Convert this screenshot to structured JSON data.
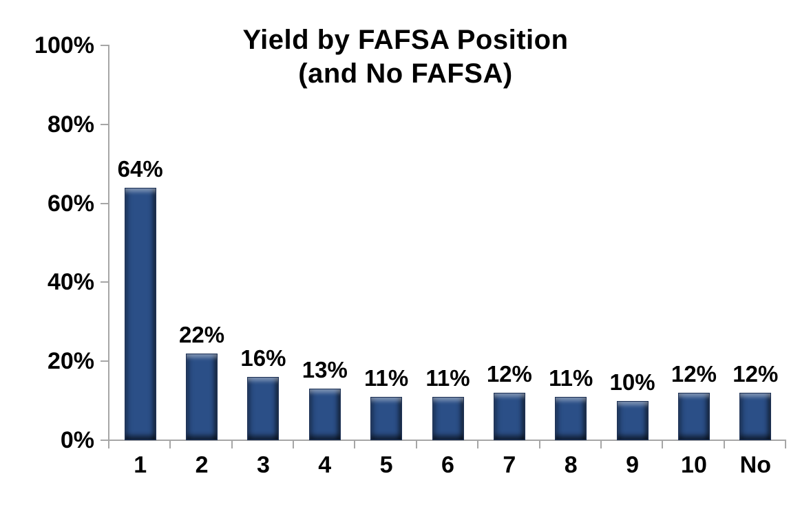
{
  "chart": {
    "title_line1": "Yield by FAFSA Position",
    "title_line2": "(and No FAFSA)"
  },
  "chart_data": {
    "type": "bar",
    "title": "Yield by FAFSA Position (and No FAFSA)",
    "categories": [
      "1",
      "2",
      "3",
      "4",
      "5",
      "6",
      "7",
      "8",
      "9",
      "10",
      "No"
    ],
    "values": [
      64,
      22,
      16,
      13,
      11,
      11,
      12,
      11,
      10,
      12,
      12
    ],
    "value_labels": [
      "64%",
      "22%",
      "16%",
      "13%",
      "11%",
      "11%",
      "12%",
      "11%",
      "10%",
      "12%",
      "12%"
    ],
    "xlabel": "",
    "ylabel": "",
    "ylim": [
      0,
      100
    ],
    "y_tick_interval": 20,
    "y_tick_labels": [
      "0%",
      "20%",
      "40%",
      "60%",
      "80%",
      "100%"
    ],
    "grid": "off",
    "legend": "none",
    "colors": {
      "bar_fill": "#2b4f87",
      "bar_edge": "#1b3055",
      "axis": "#a6a6a6",
      "text": "#000000",
      "background": "#ffffff"
    }
  }
}
